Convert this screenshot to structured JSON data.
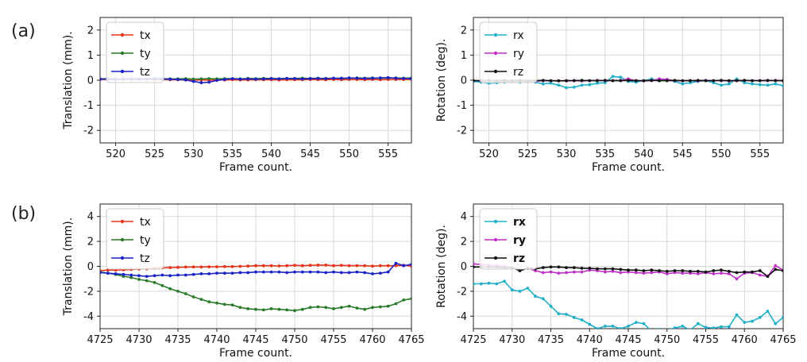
{
  "rows": [
    {
      "label": "(a)"
    },
    {
      "label": "(b)"
    }
  ],
  "colors": {
    "tx": "#e8341c",
    "ty": "#2a7a2a",
    "tz": "#1a22c8",
    "rx": "#1fb0c8",
    "ry": "#c030c8",
    "rz": "#111111",
    "grid": "#d8d8d8"
  },
  "chart_data": [
    {
      "id": "a-translation",
      "row": 0,
      "col": 0,
      "type": "line",
      "xlabel": "Frame count.",
      "ylabel": "Translation (mm).",
      "xlim": [
        518,
        558
      ],
      "ylim": [
        -2.5,
        2.5
      ],
      "xticks": [
        520,
        525,
        530,
        535,
        540,
        545,
        550,
        555
      ],
      "yticks": [
        -2,
        -1,
        0,
        1,
        2
      ],
      "grid": true,
      "legend": "top-left",
      "legend_bold": false,
      "x_start": 518,
      "x_step": 1,
      "series": [
        {
          "name": "tx",
          "color_key": "tx",
          "values": [
            0.03,
            0.03,
            0.02,
            0.02,
            0.03,
            0.03,
            0.02,
            0.02,
            0.03,
            0.02,
            0.02,
            0.01,
            0.0,
            0.01,
            0.0,
            0.01,
            0.01,
            0.02,
            0.01,
            0.01,
            0.02,
            0.02,
            0.02,
            0.01,
            0.02,
            0.02,
            0.02,
            0.03,
            0.02,
            0.02,
            0.03,
            0.02,
            0.03,
            0.03,
            0.02,
            0.03,
            0.02,
            0.03,
            0.03,
            0.03,
            0.03
          ]
        },
        {
          "name": "ty",
          "color_key": "ty",
          "values": [
            0.05,
            0.06,
            0.05,
            0.05,
            0.06,
            0.05,
            0.05,
            0.06,
            0.06,
            0.05,
            0.05,
            0.06,
            0.04,
            0.05,
            0.06,
            0.05,
            0.06,
            0.06,
            0.05,
            0.07,
            0.06,
            0.07,
            0.07,
            0.06,
            0.07,
            0.07,
            0.08,
            0.07,
            0.08,
            0.07,
            0.08,
            0.08,
            0.08,
            0.09,
            0.08,
            0.09,
            0.08,
            0.09,
            0.09,
            0.08,
            0.09
          ]
        },
        {
          "name": "tz",
          "color_key": "tz",
          "values": [
            0.04,
            0.05,
            0.04,
            0.06,
            0.05,
            0.05,
            0.05,
            0.06,
            0.05,
            0.04,
            0.03,
            0.01,
            -0.05,
            -0.1,
            -0.08,
            -0.01,
            0.03,
            0.06,
            0.04,
            0.05,
            0.04,
            0.05,
            0.06,
            0.05,
            0.07,
            0.06,
            0.05,
            0.06,
            0.07,
            0.06,
            0.08,
            0.07,
            0.09,
            0.08,
            0.07,
            0.08,
            0.09,
            0.1,
            0.08,
            0.07,
            0.06
          ]
        }
      ]
    },
    {
      "id": "a-rotation",
      "row": 0,
      "col": 1,
      "type": "line",
      "xlabel": "Frame count.",
      "ylabel": "Rotation (deg).",
      "xlim": [
        518,
        558
      ],
      "ylim": [
        -2.5,
        2.5
      ],
      "xticks": [
        520,
        525,
        530,
        535,
        540,
        545,
        550,
        555
      ],
      "yticks": [
        -2,
        -1,
        0,
        1,
        2
      ],
      "grid": true,
      "legend": "top-left",
      "legend_bold": false,
      "x_start": 518,
      "x_step": 1,
      "series": [
        {
          "name": "rx",
          "color_key": "rx",
          "values": [
            -0.05,
            -0.08,
            -0.12,
            -0.1,
            -0.08,
            -0.06,
            -0.08,
            -0.05,
            -0.08,
            -0.15,
            -0.12,
            -0.2,
            -0.3,
            -0.28,
            -0.2,
            -0.18,
            -0.12,
            -0.1,
            0.15,
            0.12,
            -0.05,
            -0.08,
            -0.02,
            0.05,
            -0.03,
            0.02,
            -0.05,
            -0.15,
            -0.1,
            -0.05,
            -0.02,
            -0.1,
            -0.2,
            -0.15,
            0.05,
            -0.1,
            -0.15,
            -0.18,
            -0.2,
            -0.15,
            -0.22
          ]
        },
        {
          "name": "ry",
          "color_key": "ry",
          "values": [
            -0.02,
            -0.03,
            -0.02,
            -0.04,
            -0.02,
            -0.03,
            -0.02,
            -0.03,
            -0.04,
            -0.02,
            -0.03,
            -0.02,
            -0.03,
            -0.02,
            -0.03,
            -0.02,
            -0.01,
            -0.02,
            -0.02,
            -0.01,
            0.05,
            -0.02,
            -0.03,
            -0.02,
            0.05,
            0.03,
            -0.02,
            -0.03,
            -0.02,
            -0.03,
            -0.01,
            -0.02,
            -0.02,
            -0.03,
            -0.02,
            -0.01,
            -0.02,
            -0.02,
            -0.02,
            -0.01,
            -0.02
          ]
        },
        {
          "name": "rz",
          "color_key": "rz",
          "values": [
            -0.02,
            -0.02,
            -0.01,
            -0.02,
            -0.01,
            -0.02,
            -0.01,
            -0.02,
            -0.02,
            -0.01,
            -0.02,
            -0.03,
            -0.02,
            -0.02,
            -0.01,
            -0.02,
            -0.02,
            -0.01,
            -0.02,
            -0.02,
            -0.01,
            -0.02,
            -0.02,
            -0.01,
            -0.02,
            -0.02,
            -0.01,
            -0.02,
            -0.02,
            -0.01,
            -0.02,
            -0.02,
            -0.01,
            -0.02,
            -0.02,
            -0.01,
            -0.02,
            -0.02,
            -0.01,
            -0.02,
            -0.02
          ]
        }
      ]
    },
    {
      "id": "b-translation",
      "row": 1,
      "col": 0,
      "type": "line",
      "xlabel": "Frame count.",
      "ylabel": "Translation (mm).",
      "xlim": [
        4725,
        4765
      ],
      "ylim": [
        -5,
        5
      ],
      "xticks": [
        4725,
        4730,
        4735,
        4740,
        4745,
        4750,
        4755,
        4760,
        4765
      ],
      "yticks": [
        -4,
        -2,
        0,
        2,
        4
      ],
      "grid": true,
      "legend": "top-left",
      "legend_bold": false,
      "x_start": 4725,
      "x_step": 1,
      "series": [
        {
          "name": "tx",
          "color_key": "tx",
          "values": [
            -0.35,
            -0.3,
            -0.3,
            -0.28,
            -0.25,
            -0.22,
            -0.2,
            -0.15,
            -0.12,
            -0.1,
            -0.08,
            -0.06,
            -0.05,
            -0.05,
            -0.04,
            -0.03,
            -0.02,
            -0.02,
            0.0,
            0.02,
            0.05,
            0.05,
            0.05,
            0.03,
            0.05,
            0.08,
            0.05,
            0.08,
            0.1,
            0.1,
            0.05,
            0.08,
            0.05,
            0.06,
            0.05,
            0.02,
            0.05,
            0.05,
            0.05,
            0.08,
            0.02
          ]
        },
        {
          "name": "ty",
          "color_key": "ty",
          "values": [
            -0.45,
            -0.55,
            -0.65,
            -0.8,
            -0.9,
            -1.05,
            -1.15,
            -1.3,
            -1.55,
            -1.8,
            -2.0,
            -2.2,
            -2.45,
            -2.65,
            -2.85,
            -2.95,
            -3.05,
            -3.1,
            -3.3,
            -3.4,
            -3.45,
            -3.5,
            -3.4,
            -3.45,
            -3.5,
            -3.55,
            -3.45,
            -3.3,
            -3.25,
            -3.3,
            -3.4,
            -3.3,
            -3.2,
            -3.35,
            -3.45,
            -3.3,
            -3.25,
            -3.2,
            -3.0,
            -2.7,
            -2.6
          ]
        },
        {
          "name": "tz",
          "color_key": "tz",
          "values": [
            -0.5,
            -0.55,
            -0.6,
            -0.65,
            -0.7,
            -0.75,
            -0.8,
            -0.75,
            -0.7,
            -0.75,
            -0.7,
            -0.7,
            -0.65,
            -0.6,
            -0.6,
            -0.55,
            -0.55,
            -0.55,
            -0.5,
            -0.5,
            -0.45,
            -0.45,
            -0.45,
            -0.45,
            -0.5,
            -0.45,
            -0.45,
            -0.45,
            -0.45,
            -0.5,
            -0.45,
            -0.5,
            -0.5,
            -0.45,
            -0.5,
            -0.6,
            -0.55,
            -0.45,
            0.25,
            0.05,
            0.15
          ]
        }
      ]
    },
    {
      "id": "b-rotation",
      "row": 1,
      "col": 1,
      "type": "line",
      "xlabel": "Frame count.",
      "ylabel": "Rotation (deg).",
      "xlim": [
        4725,
        4765
      ],
      "ylim": [
        -5,
        5
      ],
      "xticks": [
        4725,
        4730,
        4735,
        4740,
        4745,
        4750,
        4755,
        4760,
        4765
      ],
      "yticks": [
        -4,
        -2,
        0,
        2,
        4
      ],
      "grid": true,
      "legend": "top-left",
      "legend_bold": true,
      "x_start": 4725,
      "x_step": 1,
      "series": [
        {
          "name": "rx",
          "color_key": "rx",
          "values": [
            -1.4,
            -1.4,
            -1.35,
            -1.4,
            -1.2,
            -1.9,
            -2.0,
            -1.75,
            -2.4,
            -2.6,
            -3.2,
            -3.8,
            -3.85,
            -4.1,
            -4.3,
            -4.65,
            -5.0,
            -4.8,
            -4.8,
            -5.0,
            -4.8,
            -4.5,
            -4.6,
            -5.2,
            -5.05,
            -5.1,
            -4.95,
            -4.8,
            -5.1,
            -4.6,
            -4.9,
            -4.95,
            -4.85,
            -4.85,
            -3.9,
            -4.5,
            -4.4,
            -4.1,
            -3.6,
            -4.6,
            -4.1
          ]
        },
        {
          "name": "ry",
          "color_key": "ry",
          "values": [
            0.2,
            0.15,
            0.1,
            0.05,
            0.0,
            -0.1,
            -0.35,
            -0.15,
            -0.35,
            -0.5,
            -0.45,
            -0.55,
            -0.5,
            -0.45,
            -0.45,
            -0.3,
            -0.35,
            -0.45,
            -0.4,
            -0.5,
            -0.45,
            -0.5,
            -0.55,
            -0.5,
            -0.45,
            -0.6,
            -0.5,
            -0.55,
            -0.55,
            -0.6,
            -0.5,
            -0.6,
            -0.55,
            -0.6,
            -1.0,
            -0.55,
            -0.5,
            -0.7,
            -0.8,
            0.05,
            -0.3
          ]
        },
        {
          "name": "rz",
          "color_key": "rz",
          "values": [
            -0.05,
            -0.05,
            -0.05,
            -0.05,
            -0.1,
            -0.1,
            -0.35,
            -0.15,
            -0.2,
            -0.1,
            -0.05,
            -0.05,
            -0.1,
            -0.1,
            -0.15,
            -0.15,
            -0.2,
            -0.2,
            -0.2,
            -0.25,
            -0.3,
            -0.3,
            -0.35,
            -0.3,
            -0.35,
            -0.4,
            -0.35,
            -0.35,
            -0.4,
            -0.4,
            -0.45,
            -0.35,
            -0.3,
            -0.4,
            -0.5,
            -0.45,
            -0.45,
            -0.35,
            -0.8,
            -0.25,
            -0.35
          ]
        }
      ]
    }
  ]
}
